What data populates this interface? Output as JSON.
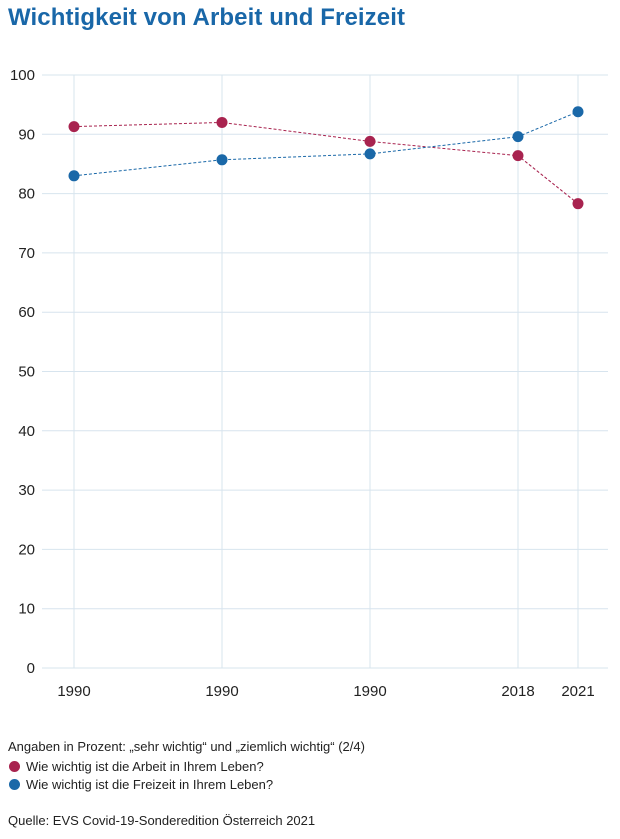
{
  "title": "Wichtigkeit von Arbeit und Freizeit",
  "note": "Angaben in Prozent: „sehr wichtig“ und „ziemlich wichtig“ (2/4)",
  "source": "Quelle: EVS Covid-19-Sonderedition Österreich 2021",
  "legend": [
    {
      "label": "Wie wichtig ist die Arbeit in Ihrem Leben?",
      "color": "#a8234f"
    },
    {
      "label": "Wie wichtig ist die Freizeit in Ihrem Leben?",
      "color": "#1a68a8"
    }
  ],
  "chart_data": {
    "type": "line",
    "categories": [
      "1990",
      "1990",
      "1990",
      "2018",
      "2021"
    ],
    "ylim": [
      0,
      100
    ],
    "yticks": [
      0,
      10,
      20,
      30,
      40,
      50,
      60,
      70,
      80,
      90,
      100
    ],
    "grid": true,
    "line_style": "dashed",
    "series": [
      {
        "name": "Wie wichtig ist die Arbeit in Ihrem Leben?",
        "color": "#a8234f",
        "values": [
          91.3,
          92.0,
          88.8,
          86.4,
          78.3
        ]
      },
      {
        "name": "Wie wichtig ist die Freizeit in Ihrem Leben?",
        "color": "#1a68a8",
        "values": [
          83.0,
          85.7,
          86.7,
          89.6,
          93.8
        ]
      }
    ]
  }
}
